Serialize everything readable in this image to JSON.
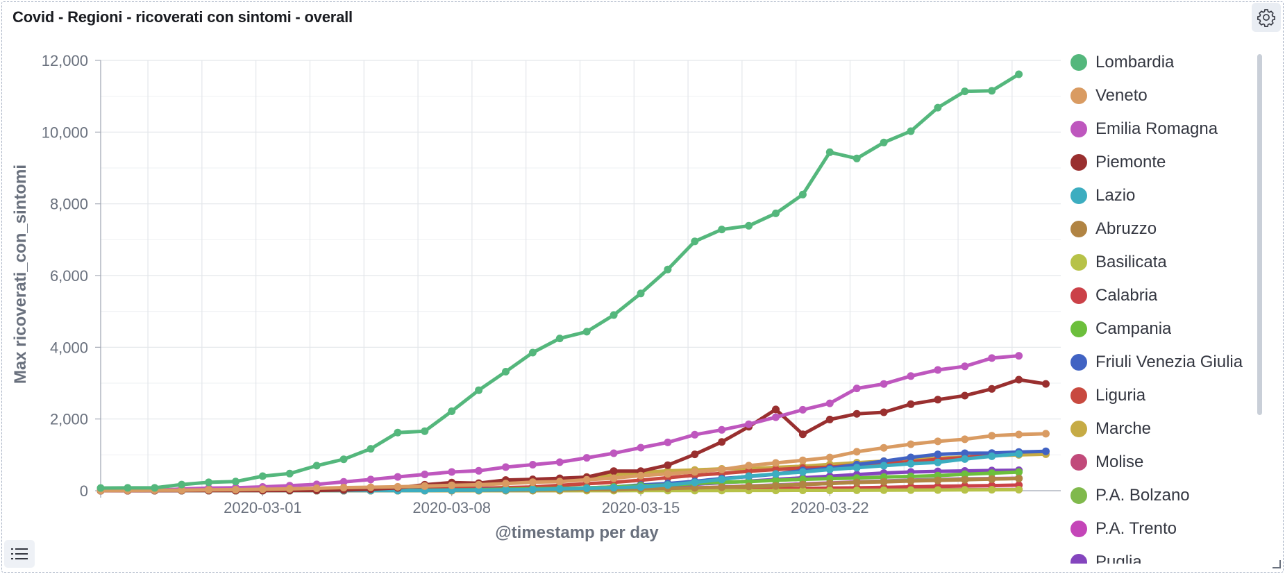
{
  "panel": {
    "title": "Covid - Regioni - ricoverati con sintomi - overall",
    "settings_icon": "gear-icon",
    "legend_toggle_icon": "list-icon"
  },
  "chart_data": {
    "type": "line",
    "title": "Covid - Regioni - ricoverati con sintomi - overall",
    "xlabel": "@timestamp per day",
    "ylabel": "Max ricoverati_con_sintomi",
    "x_tick_labels": [
      "2020-03-01",
      "2020-03-08",
      "2020-03-15",
      "2020-03-22"
    ],
    "y_tick_labels": [
      "0",
      "2,000",
      "4,000",
      "6,000",
      "8,000",
      "10,000",
      "12,000"
    ],
    "ylim": [
      0,
      12000
    ],
    "grid": true,
    "legend_position": "right",
    "x": [
      "2020-02-24",
      "2020-02-25",
      "2020-02-26",
      "2020-02-27",
      "2020-02-28",
      "2020-02-29",
      "2020-03-01",
      "2020-03-02",
      "2020-03-03",
      "2020-03-04",
      "2020-03-05",
      "2020-03-06",
      "2020-03-07",
      "2020-03-08",
      "2020-03-09",
      "2020-03-10",
      "2020-03-11",
      "2020-03-12",
      "2020-03-13",
      "2020-03-14",
      "2020-03-15",
      "2020-03-16",
      "2020-03-17",
      "2020-03-18",
      "2020-03-19",
      "2020-03-20",
      "2020-03-21",
      "2020-03-22",
      "2020-03-23",
      "2020-03-24",
      "2020-03-25",
      "2020-03-26",
      "2020-03-27",
      "2020-03-28",
      "2020-03-29",
      "2020-03-30",
      "2020-03-31"
    ],
    "series": [
      {
        "name": "Lombardia",
        "color": "#54b77c",
        "values": [
          76,
          79,
          79,
          172,
          235,
          256,
          406,
          478,
          698,
          877,
          1169,
          1622,
          1661,
          2217,
          2802,
          3319,
          3852,
          4247,
          4435,
          4898,
          5500,
          6171,
          6953,
          7285,
          7387,
          7735,
          8258,
          9439,
          9266,
          9711,
          10026,
          10681,
          11137,
          11152,
          11613,
          null,
          null
        ]
      },
      {
        "name": "Veneto",
        "color": "#d99b62",
        "values": [
          4,
          8,
          12,
          14,
          25,
          30,
          40,
          50,
          68,
          88,
          97,
          109,
          129,
          151,
          166,
          198,
          239,
          254,
          303,
          349,
          422,
          471,
          524,
          590,
          698,
          774,
          848,
          928,
          1085,
          1196,
          1297,
          1377,
          1435,
          1532,
          1568,
          1589,
          null
        ]
      },
      {
        "name": "Emilia Romagna",
        "color": "#be57be",
        "values": [
          10,
          11,
          12,
          49,
          71,
          83,
          107,
          141,
          177,
          246,
          312,
          386,
          454,
          522,
          556,
          658,
          725,
          796,
          917,
          1045,
          1200,
          1347,
          1561,
          1697,
          1854,
          2050,
          2257,
          2437,
          2852,
          2976,
          3198,
          3368,
          3468,
          3698,
          3762,
          null,
          null
        ]
      },
      {
        "name": "Piemonte",
        "color": "#992f2f",
        "values": [
          0,
          0,
          2,
          3,
          3,
          3,
          3,
          7,
          8,
          19,
          40,
          80,
          167,
          227,
          211,
          299,
          318,
          346,
          377,
          548,
          545,
          712,
          1014,
          1360,
          1784,
          2266,
          1574,
          1985,
          2144,
          2188,
          2414,
          2539,
          2651,
          2839,
          3096,
          2979,
          null
        ]
      },
      {
        "name": "Lazio",
        "color": "#3cadc0",
        "values": [
          3,
          3,
          3,
          3,
          3,
          3,
          3,
          3,
          3,
          3,
          3,
          3,
          3,
          13,
          16,
          23,
          36,
          50,
          67,
          85,
          104,
          161,
          233,
          316,
          407,
          467,
          522,
          590,
          640,
          697,
          753,
          790,
          882,
          960,
          1025,
          null,
          null
        ]
      },
      {
        "name": "Abruzzo",
        "color": "#b18443",
        "values": [
          0,
          0,
          0,
          0,
          0,
          1,
          1,
          1,
          1,
          1,
          2,
          3,
          3,
          5,
          7,
          11,
          17,
          23,
          32,
          33,
          54,
          64,
          80,
          97,
          119,
          133,
          173,
          203,
          232,
          248,
          270,
          288,
          306,
          324,
          339,
          null,
          null
        ]
      },
      {
        "name": "Basilicata",
        "color": "#b7c248",
        "values": [
          0,
          0,
          0,
          0,
          0,
          0,
          0,
          0,
          0,
          0,
          0,
          0,
          0,
          0,
          0,
          1,
          1,
          1,
          2,
          2,
          3,
          3,
          4,
          6,
          7,
          8,
          10,
          10,
          12,
          15,
          17,
          20,
          23,
          28,
          30,
          null,
          null
        ]
      },
      {
        "name": "Calabria",
        "color": "#cb4148",
        "values": [
          0,
          0,
          0,
          0,
          0,
          0,
          0,
          0,
          0,
          0,
          1,
          1,
          1,
          2,
          3,
          5,
          6,
          8,
          9,
          14,
          17,
          21,
          25,
          35,
          44,
          55,
          64,
          72,
          80,
          92,
          107,
          121,
          134,
          143,
          156,
          null,
          null
        ]
      },
      {
        "name": "Campania",
        "color": "#6cbf3c",
        "values": [
          0,
          0,
          0,
          0,
          2,
          2,
          4,
          4,
          5,
          8,
          10,
          12,
          15,
          20,
          28,
          40,
          53,
          62,
          78,
          107,
          135,
          161,
          200,
          239,
          253,
          291,
          318,
          337,
          354,
          382,
          396,
          420,
          459,
          489,
          521,
          null,
          null
        ]
      },
      {
        "name": "Friuli Venezia Giulia",
        "color": "#4163c3",
        "values": [
          0,
          0,
          0,
          0,
          0,
          0,
          7,
          7,
          10,
          10,
          12,
          15,
          20,
          25,
          33,
          44,
          52,
          60,
          78,
          104,
          159,
          201,
          262,
          339,
          395,
          463,
          563,
          622,
          728,
          822,
          929,
          1014,
          1046,
          1051,
          1080,
          1099,
          null
        ]
      },
      {
        "name": "Liguria",
        "color": "#c8493f",
        "values": [
          0,
          0,
          0,
          5,
          7,
          10,
          14,
          16,
          15,
          17,
          20,
          27,
          40,
          58,
          68,
          88,
          104,
          150,
          196,
          235,
          292,
          362,
          432,
          482,
          541,
          590,
          631,
          657,
          720,
          764,
          808,
          877,
          926,
          991,
          1030,
          null,
          null
        ]
      },
      {
        "name": "Marche",
        "color": "#c6ab45",
        "values": [
          0,
          0,
          0,
          1,
          2,
          4,
          6,
          8,
          14,
          25,
          40,
          62,
          95,
          125,
          167,
          210,
          258,
          316,
          383,
          446,
          510,
          553,
          579,
          610,
          613,
          650,
          684,
          734,
          781,
          824,
          865,
          904,
          940,
          978,
          998,
          1018,
          null
        ]
      },
      {
        "name": "Molise",
        "color": "#c14a7a",
        "values": [
          0,
          0,
          0,
          0,
          0,
          0,
          0,
          0,
          0,
          0,
          0,
          0,
          1,
          1,
          3,
          5,
          6,
          6,
          7,
          8,
          9,
          10,
          12,
          13,
          14,
          17,
          19,
          21,
          23,
          25,
          27,
          29,
          31,
          33,
          35,
          null,
          null
        ]
      },
      {
        "name": "P.A. Bolzano",
        "color": "#80b94c",
        "values": [
          0,
          0,
          0,
          0,
          0,
          0,
          0,
          0,
          0,
          0,
          0,
          1,
          1,
          2,
          3,
          4,
          6,
          10,
          14,
          20,
          33,
          46,
          64,
          90,
          120,
          150,
          174,
          201,
          232,
          257,
          283,
          300,
          317,
          328,
          345,
          null,
          null
        ]
      },
      {
        "name": "P.A. Trento",
        "color": "#c445b8",
        "values": [
          0,
          0,
          0,
          0,
          0,
          0,
          0,
          0,
          0,
          0,
          1,
          1,
          2,
          4,
          5,
          7,
          10,
          16,
          25,
          35,
          47,
          60,
          78,
          102,
          132,
          161,
          192,
          215,
          244,
          271,
          297,
          316,
          331,
          339,
          348,
          null,
          null
        ]
      },
      {
        "name": "Puglia",
        "color": "#8445be",
        "values": [
          0,
          0,
          0,
          0,
          0,
          0,
          0,
          1,
          2,
          4,
          6,
          10,
          14,
          20,
          26,
          34,
          44,
          55,
          70,
          89,
          112,
          141,
          180,
          222,
          265,
          313,
          360,
          404,
          450,
          494,
          523,
          540,
          551,
          563,
          570,
          null,
          null
        ]
      }
    ]
  }
}
